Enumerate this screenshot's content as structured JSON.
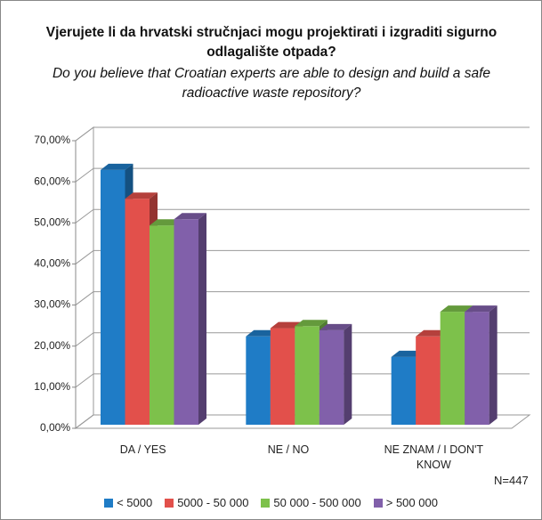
{
  "chart_data": {
    "type": "bar3d",
    "title": "Vjerujete li da hrvatski stručnjaci mogu projektirati i izgraditi sigurno odlagalište otpada?",
    "subtitle": "Do you believe that Croatian experts are able to design and build a safe radioactive waste repository?",
    "categories": [
      "DA / YES",
      "NE / NO",
      "NE ZNAM / I DON'T KNOW"
    ],
    "series": [
      {
        "name": "< 5000",
        "color": "#1f7cc6",
        "values": [
          62,
          21.5,
          16.5
        ]
      },
      {
        "name": "5000 - 50 000",
        "color": "#e2504b",
        "values": [
          55,
          23.5,
          21.5
        ]
      },
      {
        "name": "50 000 - 500 000",
        "color": "#7dc14b",
        "values": [
          48.5,
          24,
          27.5
        ]
      },
      {
        "name": "> 500 000",
        "color": "#8160aa",
        "values": [
          50,
          23,
          27.5
        ]
      }
    ],
    "ylim": [
      0,
      70
    ],
    "yticks": [
      {
        "value": 0,
        "label": "0,00%"
      },
      {
        "value": 10,
        "label": "10,00%"
      },
      {
        "value": 20,
        "label": "20,00%"
      },
      {
        "value": 30,
        "label": "30,00%"
      },
      {
        "value": 40,
        "label": "40,00%"
      },
      {
        "value": 50,
        "label": "50,00%"
      },
      {
        "value": 60,
        "label": "60,00%"
      },
      {
        "value": 70,
        "label": "70,00%"
      }
    ],
    "grid": true,
    "annotation": "N=447"
  }
}
